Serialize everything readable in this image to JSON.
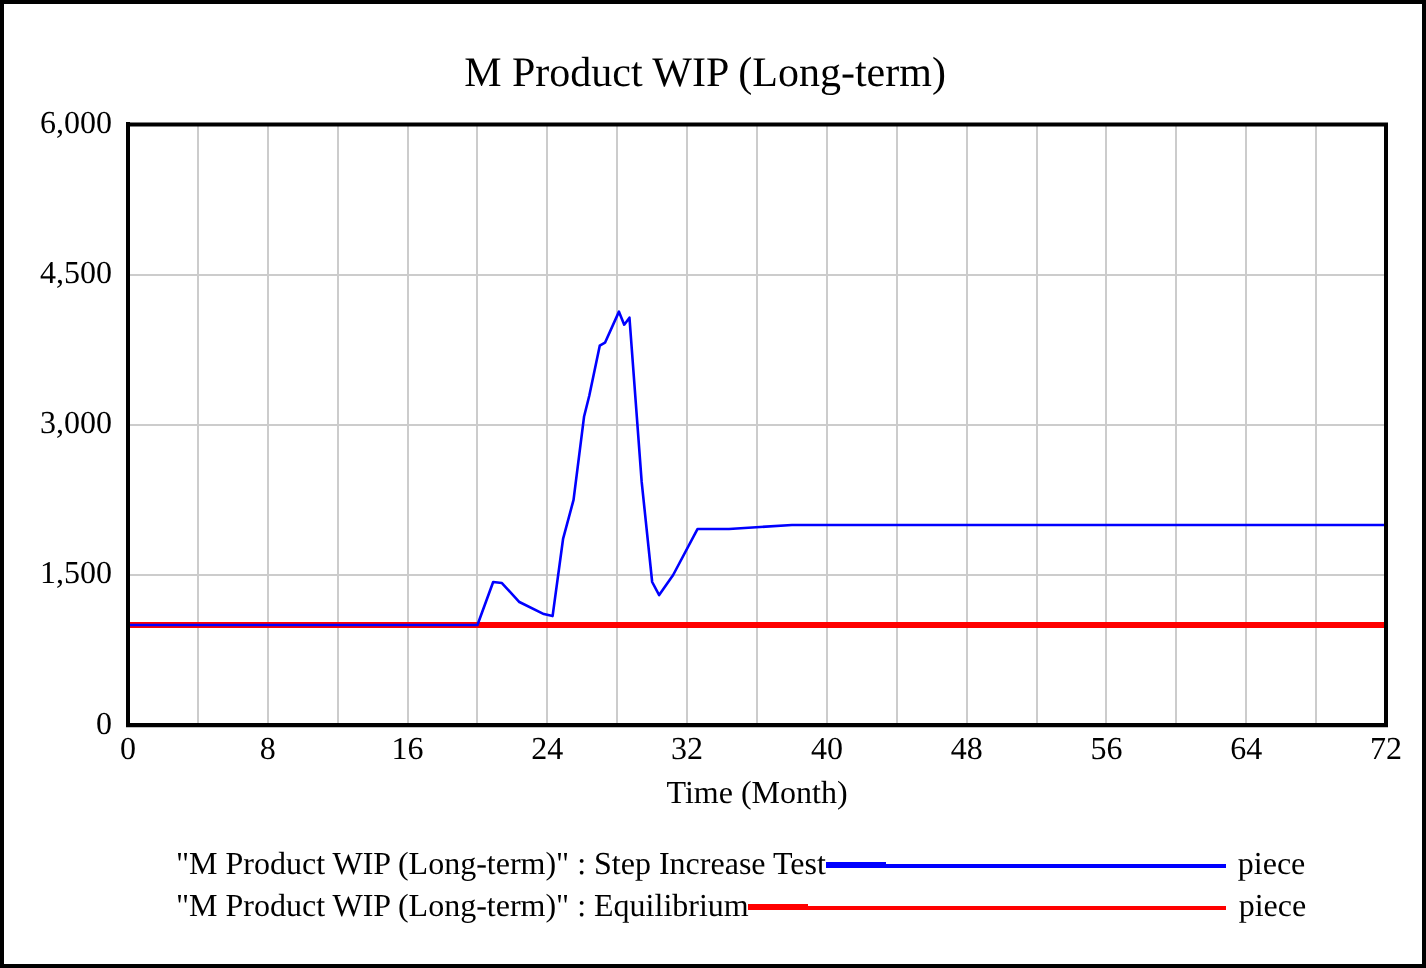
{
  "chart_data": {
    "type": "line",
    "title": "M Product WIP (Long-term)",
    "xlabel": "Time (Month)",
    "x": [
      0,
      20.0,
      20.9,
      21.4,
      22.4,
      23.8,
      24.3,
      24.9,
      25.5,
      26.1,
      26.4,
      27.0,
      27.3,
      28.1,
      28.4,
      28.7,
      29.4,
      30.0,
      30.4,
      31.2,
      32.6,
      34.4,
      38,
      72
    ],
    "series": [
      {
        "name": "\"M Product WIP (Long-term)\" : Step Increase Test",
        "color": "#0000ff",
        "values": [
          1000,
          1000,
          1430,
          1420,
          1230,
          1110,
          1090,
          1860,
          2250,
          3080,
          3290,
          3790,
          3820,
          4130,
          4000,
          4070,
          2430,
          1430,
          1300,
          1500,
          1960,
          1960,
          2000,
          2000
        ]
      },
      {
        "name": "\"M Product WIP (Long-term)\" : Equilibrium",
        "color": "#ff0000",
        "x": [
          0,
          72
        ],
        "values": [
          1000,
          1000
        ]
      }
    ],
    "xlim": [
      0,
      72
    ],
    "xticks": [
      0,
      {
        "value": 4,
        "label": null
      },
      8,
      {
        "value": 12,
        "label": null
      },
      16,
      {
        "value": 20,
        "label": null
      },
      24,
      {
        "value": 28,
        "label": null
      },
      32,
      {
        "value": 36,
        "label": null
      },
      40,
      {
        "value": 44,
        "label": null
      },
      48,
      {
        "value": 52,
        "label": null
      },
      56,
      {
        "value": 60,
        "label": null
      },
      64,
      {
        "value": 68,
        "label": null
      },
      72
    ],
    "ylim": [
      0,
      6000
    ],
    "yticks": [
      0,
      {
        "value": 1500,
        "label": "1,500"
      },
      {
        "value": 3000,
        "label": "3,000"
      },
      {
        "value": 4500,
        "label": "4,500"
      },
      {
        "value": 6000,
        "label": "6,000"
      }
    ],
    "grid": true,
    "legend": "bottom",
    "marker": "none",
    "line_style": "solid",
    "annotations": [
      "piece",
      "piece"
    ]
  }
}
